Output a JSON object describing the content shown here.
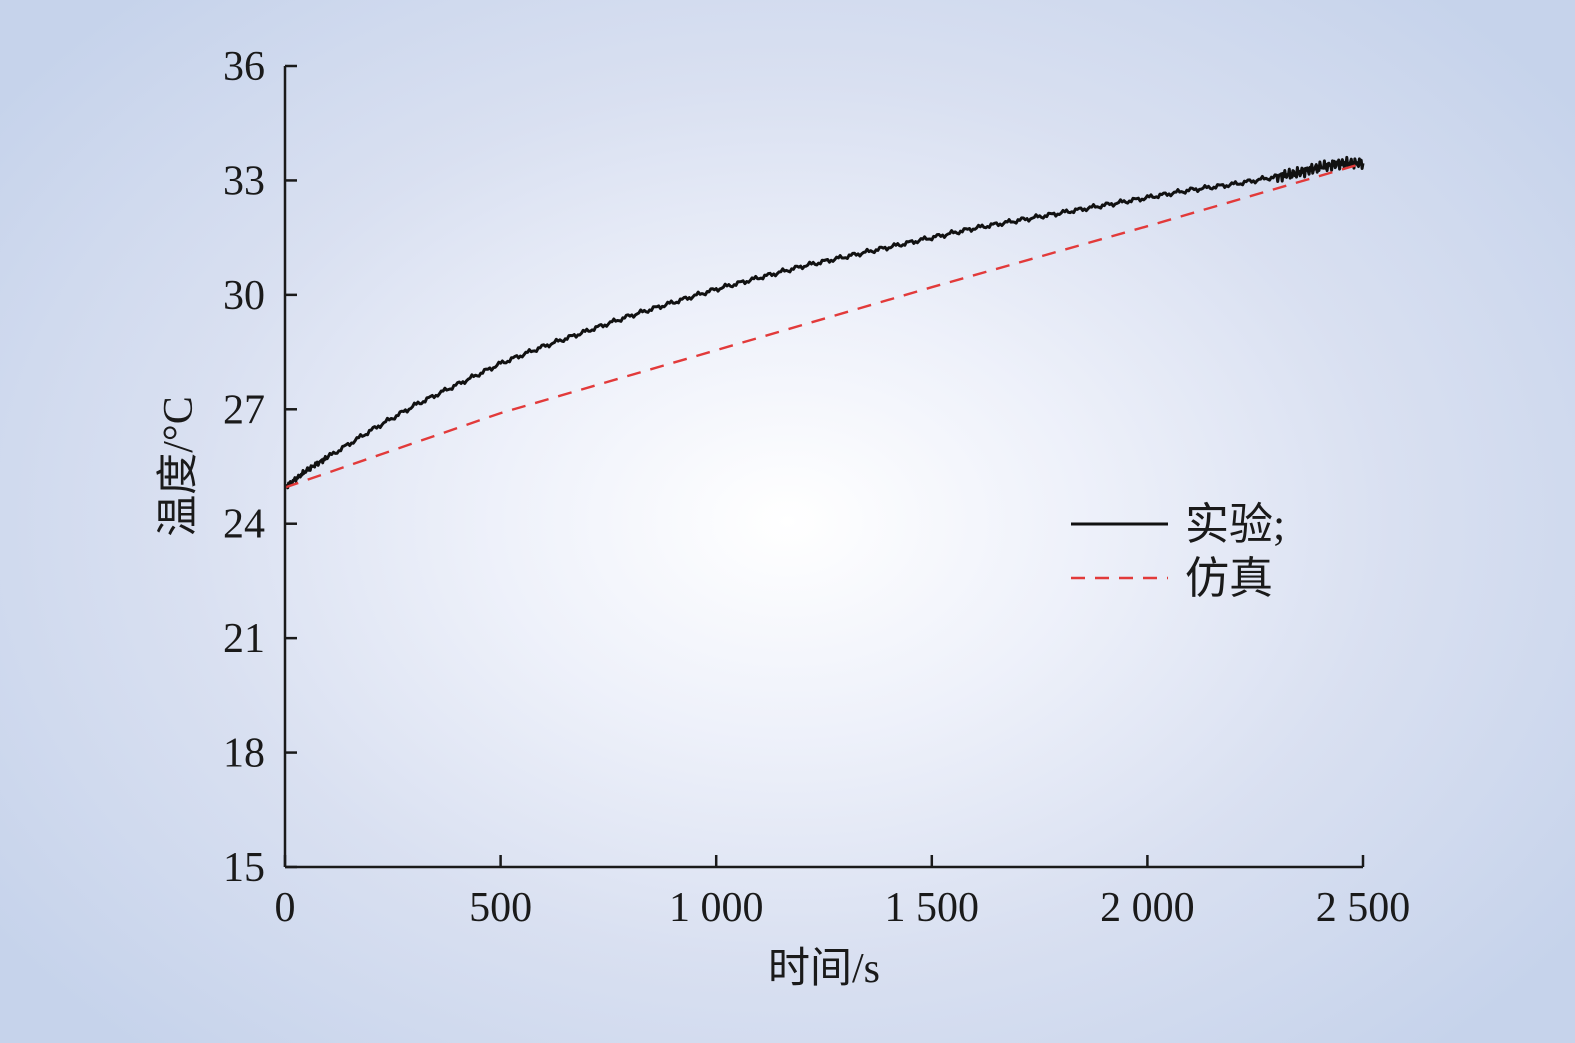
{
  "chart_data": {
    "type": "line",
    "xlabel": "时间/s",
    "ylabel": "温度/°C",
    "xlim": [
      0,
      2500
    ],
    "ylim": [
      15,
      36
    ],
    "xticks": [
      {
        "value": 0,
        "label": "0"
      },
      {
        "value": 500,
        "label": "500"
      },
      {
        "value": 1000,
        "label": "1 000"
      },
      {
        "value": 1500,
        "label": "1 500"
      },
      {
        "value": 2000,
        "label": "2 000"
      },
      {
        "value": 2500,
        "label": "2 500"
      }
    ],
    "yticks": [
      {
        "value": 15,
        "label": "15"
      },
      {
        "value": 18,
        "label": "18"
      },
      {
        "value": 21,
        "label": "21"
      },
      {
        "value": 24,
        "label": "24"
      },
      {
        "value": 27,
        "label": "27"
      },
      {
        "value": 30,
        "label": "30"
      },
      {
        "value": 33,
        "label": "33"
      },
      {
        "value": 36,
        "label": "36"
      }
    ],
    "grid": false,
    "legend_position": "right-middle",
    "series": [
      {
        "name": "实验;",
        "color": "#111111",
        "style": "solid",
        "x": [
          0,
          50,
          100,
          200,
          300,
          400,
          500,
          600,
          700,
          800,
          900,
          1000,
          1100,
          1200,
          1300,
          1400,
          1500,
          1600,
          1700,
          1800,
          1900,
          2000,
          2100,
          2200,
          2300,
          2350,
          2400,
          2450,
          2500
        ],
        "y": [
          24.95,
          25.4,
          25.75,
          26.45,
          27.1,
          27.65,
          28.2,
          28.65,
          29.05,
          29.45,
          29.8,
          30.15,
          30.45,
          30.75,
          31.0,
          31.25,
          31.5,
          31.75,
          31.95,
          32.15,
          32.35,
          32.55,
          32.75,
          32.9,
          33.1,
          33.2,
          33.35,
          33.45,
          33.45
        ]
      },
      {
        "name": "仿真",
        "color": "#e23a3a",
        "style": "dashed",
        "x": [
          0,
          500,
          1000,
          1500,
          2000,
          2500
        ],
        "y": [
          24.95,
          26.9,
          28.55,
          30.2,
          31.8,
          33.45
        ]
      }
    ]
  }
}
